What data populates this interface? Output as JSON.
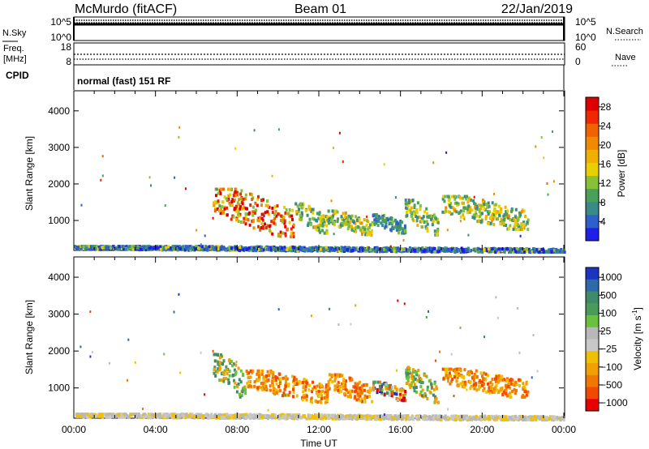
{
  "header": {
    "station": "McMurdo (fitACF)",
    "beam": "Beam 01",
    "date": "22/Jan/2019"
  },
  "status_panel": {
    "nsky_label": "N.Sky",
    "nsky_ticks": [
      "10^5",
      "10^0"
    ],
    "nsearch_label": "N.Search",
    "nsearch_ticks": [
      "10^5",
      "10^0"
    ],
    "freq_label_line1": "Freq.",
    "freq_label_line2": "[MHz]",
    "freq_ticks": [
      "18",
      "8"
    ],
    "nave_label": "Nave",
    "nave_ticks": [
      "60",
      "0"
    ],
    "cpid_label": "CPID",
    "cpid_text": "normal (fast) 151 RF"
  },
  "chart_data": [
    {
      "type": "heatmap",
      "quantity": "Power",
      "ylabel": "Slant Range [km]",
      "yticks": [
        1000,
        2000,
        3000,
        4000
      ],
      "ylim": [
        180,
        4550
      ],
      "xlim": [
        0,
        24
      ],
      "colorbar_label": "Power [dB]",
      "colorbar_ticks": [
        "4",
        "8",
        "12",
        "16",
        "20",
        "24",
        "28"
      ],
      "colorbar_range": [
        0,
        30
      ],
      "colorbar_colors": [
        "#1f1fe8",
        "#2f5fc8",
        "#3a8a8a",
        "#4aa058",
        "#88c038",
        "#e8d000",
        "#f0b000",
        "#f08a00",
        "#f06400",
        "#ee2800",
        "#dd0000"
      ],
      "echo_regions": [
        {
          "t0": 6.8,
          "t1": 10.8,
          "r0": 600,
          "r1": 1900,
          "intensity": 0.85
        },
        {
          "t0": 10.8,
          "t1": 12.4,
          "r0": 700,
          "r1": 1500,
          "intensity": 0.45
        },
        {
          "t0": 12.4,
          "t1": 14.6,
          "r0": 650,
          "r1": 1300,
          "intensity": 0.5
        },
        {
          "t0": 14.6,
          "t1": 16.2,
          "r0": 700,
          "r1": 1200,
          "intensity": 0.3
        },
        {
          "t0": 16.2,
          "t1": 17.8,
          "r0": 650,
          "r1": 1600,
          "intensity": 0.45
        },
        {
          "t0": 18.0,
          "t1": 22.2,
          "r0": 800,
          "r1": 1700,
          "intensity": 0.5
        },
        {
          "t0": 0.0,
          "t1": 24.0,
          "r0": 180,
          "r1": 330,
          "intensity": 0.15
        }
      ]
    },
    {
      "type": "heatmap",
      "quantity": "Velocity",
      "ylabel": "Slant Range [km]",
      "yticks": [
        1000,
        2000,
        3000,
        4000
      ],
      "ylim": [
        180,
        4550
      ],
      "xlim": [
        0,
        24
      ],
      "xlabel": "Time UT",
      "xticks": [
        "00:00",
        "04:00",
        "08:00",
        "12:00",
        "16:00",
        "20:00",
        "00:00"
      ],
      "colorbar_label": "Velocity [m s",
      "colorbar_label_sup": "-1",
      "colorbar_label_end": "]",
      "colorbar_ticks": [
        "1000",
        "500",
        "100",
        "25",
        "−25",
        "−100",
        "−500",
        "−1000"
      ],
      "colorbar_colors": [
        "#1c35c0",
        "#2e6aa8",
        "#3f8a6a",
        "#4a9a5a",
        "#6cc040",
        "#b8b8b8",
        "#c8c8c8",
        "#f0c000",
        "#f0a000",
        "#f07800",
        "#f04a00",
        "#e80000"
      ],
      "echo_regions": [
        {
          "t0": 6.8,
          "t1": 8.4,
          "r0": 800,
          "r1": 1950,
          "vel": "green"
        },
        {
          "t0": 8.4,
          "t1": 12.4,
          "r0": 650,
          "r1": 1500,
          "vel": "orange"
        },
        {
          "t0": 12.4,
          "t1": 14.6,
          "r0": 650,
          "r1": 1400,
          "vel": "orange"
        },
        {
          "t0": 14.6,
          "t1": 16.2,
          "r0": 700,
          "r1": 1200,
          "vel": "mixed"
        },
        {
          "t0": 16.2,
          "t1": 17.8,
          "r0": 650,
          "r1": 1600,
          "vel": "green"
        },
        {
          "t0": 18.0,
          "t1": 22.2,
          "r0": 800,
          "r1": 1550,
          "vel": "orange"
        },
        {
          "t0": 0.0,
          "t1": 24.0,
          "r0": 180,
          "r1": 330,
          "vel": "ground"
        }
      ]
    }
  ]
}
